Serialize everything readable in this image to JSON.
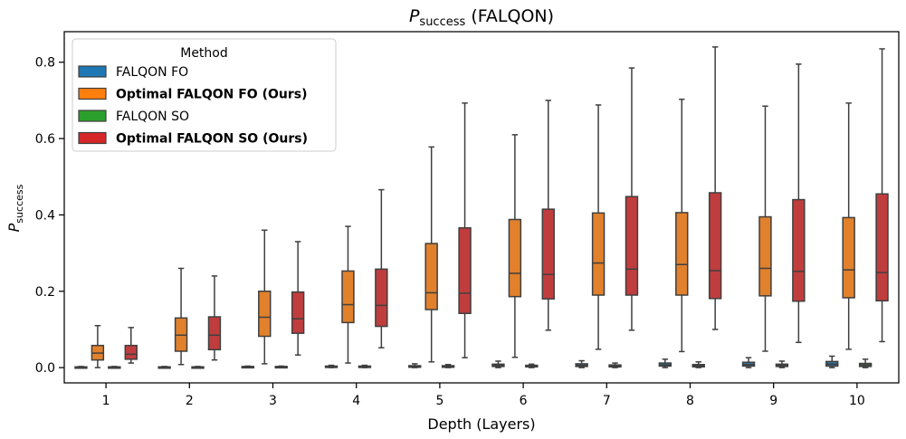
{
  "chart_data": {
    "type": "box",
    "title": "P",
    "title_sub": "success",
    "title_suffix": " (FALQON)",
    "xlabel": "Depth (Layers)",
    "ylabel": "P",
    "ylabel_sub": "success",
    "categories": [
      "1",
      "2",
      "3",
      "4",
      "5",
      "6",
      "7",
      "8",
      "9",
      "10"
    ],
    "ylim": [
      -0.04,
      0.88
    ],
    "yticks": [
      "0.0",
      "0.2",
      "0.4",
      "0.6",
      "0.8"
    ],
    "legend": {
      "title": "Method",
      "placement": "upper-left",
      "entries": [
        {
          "label": "FALQON FO",
          "color": "#1f77b4",
          "bold": false
        },
        {
          "label": "Optimal FALQON FO (Ours)",
          "color": "#ff7f0e",
          "bold": true
        },
        {
          "label": "FALQON SO",
          "color": "#2ca02c",
          "bold": false
        },
        {
          "label": "Optimal FALQON SO (Ours)",
          "color": "#d62728",
          "bold": true
        }
      ]
    },
    "series": [
      {
        "name": "FALQON FO",
        "color": "#3274a1",
        "boxes": [
          {
            "q1": 0.0,
            "median": 0.001,
            "q3": 0.002,
            "whislo": 0.0,
            "whishi": 0.003
          },
          {
            "q1": 0.0,
            "median": 0.001,
            "q3": 0.002,
            "whislo": 0.0,
            "whishi": 0.003
          },
          {
            "q1": 0.0,
            "median": 0.002,
            "q3": 0.003,
            "whislo": 0.0,
            "whishi": 0.004
          },
          {
            "q1": 0.001,
            "median": 0.002,
            "q3": 0.004,
            "whislo": 0.0,
            "whishi": 0.006
          },
          {
            "q1": 0.001,
            "median": 0.003,
            "q3": 0.005,
            "whislo": 0.0,
            "whishi": 0.01
          },
          {
            "q1": 0.003,
            "median": 0.006,
            "q3": 0.009,
            "whislo": 0.0,
            "whishi": 0.017
          },
          {
            "q1": 0.003,
            "median": 0.006,
            "q3": 0.01,
            "whislo": 0.0,
            "whishi": 0.018
          },
          {
            "q1": 0.004,
            "median": 0.007,
            "q3": 0.012,
            "whislo": 0.0,
            "whishi": 0.022
          },
          {
            "q1": 0.004,
            "median": 0.008,
            "q3": 0.014,
            "whislo": 0.0,
            "whishi": 0.026
          },
          {
            "q1": 0.004,
            "median": 0.009,
            "q3": 0.016,
            "whislo": 0.0,
            "whishi": 0.03
          }
        ]
      },
      {
        "name": "Optimal FALQON FO (Ours)",
        "color": "#e1812c",
        "boxes": [
          {
            "q1": 0.02,
            "median": 0.038,
            "q3": 0.058,
            "whislo": 0.0,
            "whishi": 0.11
          },
          {
            "q1": 0.043,
            "median": 0.085,
            "q3": 0.13,
            "whislo": 0.008,
            "whishi": 0.26
          },
          {
            "q1": 0.082,
            "median": 0.132,
            "q3": 0.2,
            "whislo": 0.01,
            "whishi": 0.36
          },
          {
            "q1": 0.118,
            "median": 0.165,
            "q3": 0.253,
            "whislo": 0.012,
            "whishi": 0.37
          },
          {
            "q1": 0.152,
            "median": 0.196,
            "q3": 0.325,
            "whislo": 0.015,
            "whishi": 0.578
          },
          {
            "q1": 0.186,
            "median": 0.247,
            "q3": 0.388,
            "whislo": 0.027,
            "whishi": 0.61
          },
          {
            "q1": 0.19,
            "median": 0.274,
            "q3": 0.405,
            "whislo": 0.048,
            "whishi": 0.688
          },
          {
            "q1": 0.19,
            "median": 0.27,
            "q3": 0.406,
            "whislo": 0.042,
            "whishi": 0.703
          },
          {
            "q1": 0.188,
            "median": 0.26,
            "q3": 0.395,
            "whislo": 0.043,
            "whishi": 0.685
          },
          {
            "q1": 0.183,
            "median": 0.256,
            "q3": 0.393,
            "whislo": 0.048,
            "whishi": 0.693
          }
        ]
      },
      {
        "name": "FALQON SO",
        "color": "#3a923a",
        "boxes": [
          {
            "q1": 0.0,
            "median": 0.001,
            "q3": 0.002,
            "whislo": 0.0,
            "whishi": 0.003
          },
          {
            "q1": 0.0,
            "median": 0.001,
            "q3": 0.002,
            "whislo": 0.0,
            "whishi": 0.003
          },
          {
            "q1": 0.0,
            "median": 0.002,
            "q3": 0.003,
            "whislo": 0.0,
            "whishi": 0.004
          },
          {
            "q1": 0.001,
            "median": 0.002,
            "q3": 0.004,
            "whislo": 0.0,
            "whishi": 0.006
          },
          {
            "q1": 0.001,
            "median": 0.003,
            "q3": 0.005,
            "whislo": 0.0,
            "whishi": 0.008
          },
          {
            "q1": 0.002,
            "median": 0.004,
            "q3": 0.006,
            "whislo": 0.0,
            "whishi": 0.009
          },
          {
            "q1": 0.002,
            "median": 0.004,
            "q3": 0.007,
            "whislo": 0.0,
            "whishi": 0.012
          },
          {
            "q1": 0.002,
            "median": 0.005,
            "q3": 0.008,
            "whislo": 0.0,
            "whishi": 0.015
          },
          {
            "q1": 0.003,
            "median": 0.006,
            "q3": 0.009,
            "whislo": 0.0,
            "whishi": 0.017
          },
          {
            "q1": 0.003,
            "median": 0.007,
            "q3": 0.011,
            "whislo": 0.0,
            "whishi": 0.022
          }
        ]
      },
      {
        "name": "Optimal FALQON SO (Ours)",
        "color": "#c03d3e",
        "boxes": [
          {
            "q1": 0.022,
            "median": 0.035,
            "q3": 0.058,
            "whislo": 0.012,
            "whishi": 0.105
          },
          {
            "q1": 0.047,
            "median": 0.085,
            "q3": 0.133,
            "whislo": 0.02,
            "whishi": 0.24
          },
          {
            "q1": 0.09,
            "median": 0.128,
            "q3": 0.198,
            "whislo": 0.033,
            "whishi": 0.33
          },
          {
            "q1": 0.108,
            "median": 0.163,
            "q3": 0.258,
            "whislo": 0.052,
            "whishi": 0.466
          },
          {
            "q1": 0.142,
            "median": 0.195,
            "q3": 0.366,
            "whislo": 0.026,
            "whishi": 0.693
          },
          {
            "q1": 0.18,
            "median": 0.244,
            "q3": 0.415,
            "whislo": 0.098,
            "whishi": 0.7
          },
          {
            "q1": 0.19,
            "median": 0.258,
            "q3": 0.448,
            "whislo": 0.098,
            "whishi": 0.785
          },
          {
            "q1": 0.181,
            "median": 0.254,
            "q3": 0.458,
            "whislo": 0.1,
            "whishi": 0.84
          },
          {
            "q1": 0.174,
            "median": 0.252,
            "q3": 0.44,
            "whislo": 0.066,
            "whishi": 0.795
          },
          {
            "q1": 0.175,
            "median": 0.249,
            "q3": 0.455,
            "whislo": 0.068,
            "whishi": 0.835
          }
        ]
      }
    ],
    "edge_color": "#3f3f3f",
    "grid": false
  }
}
